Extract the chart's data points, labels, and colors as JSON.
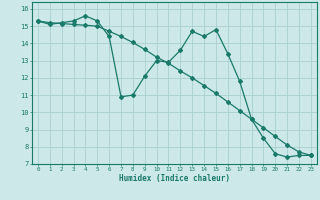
{
  "xlabel": "Humidex (Indice chaleur)",
  "background_color": "#cce8e8",
  "grid_color": "#aad0d0",
  "line_color": "#1a7a6a",
  "xlim": [
    -0.5,
    23.5
  ],
  "ylim": [
    7,
    16.4
  ],
  "xticks": [
    0,
    1,
    2,
    3,
    4,
    5,
    6,
    7,
    8,
    9,
    10,
    11,
    12,
    13,
    14,
    15,
    16,
    17,
    18,
    19,
    20,
    21,
    22,
    23
  ],
  "yticks": [
    7,
    8,
    9,
    10,
    11,
    12,
    13,
    14,
    15,
    16
  ],
  "line1_x": [
    0,
    1,
    2,
    3,
    4,
    5,
    6,
    7,
    8,
    9,
    10,
    11,
    12,
    13,
    14,
    15,
    16,
    17,
    18,
    19,
    20,
    21,
    22,
    23
  ],
  "line1_y": [
    15.3,
    15.1,
    15.2,
    15.3,
    15.6,
    15.3,
    14.4,
    10.9,
    11.0,
    12.1,
    13.0,
    12.9,
    13.6,
    14.7,
    14.4,
    14.8,
    13.4,
    11.8,
    9.6,
    8.5,
    7.6,
    7.4,
    7.5,
    7.5
  ],
  "line2_x": [
    0,
    1,
    2,
    3,
    4,
    5,
    6,
    7,
    8,
    9,
    10,
    11,
    12,
    13,
    14,
    15,
    16,
    17,
    18,
    19,
    20,
    21,
    22,
    23
  ],
  "line2_y": [
    15.3,
    15.2,
    15.15,
    15.1,
    15.05,
    15.0,
    14.7,
    14.4,
    14.05,
    13.65,
    13.2,
    12.85,
    12.4,
    12.0,
    11.55,
    11.1,
    10.6,
    10.1,
    9.6,
    9.1,
    8.6,
    8.1,
    7.7,
    7.5
  ]
}
